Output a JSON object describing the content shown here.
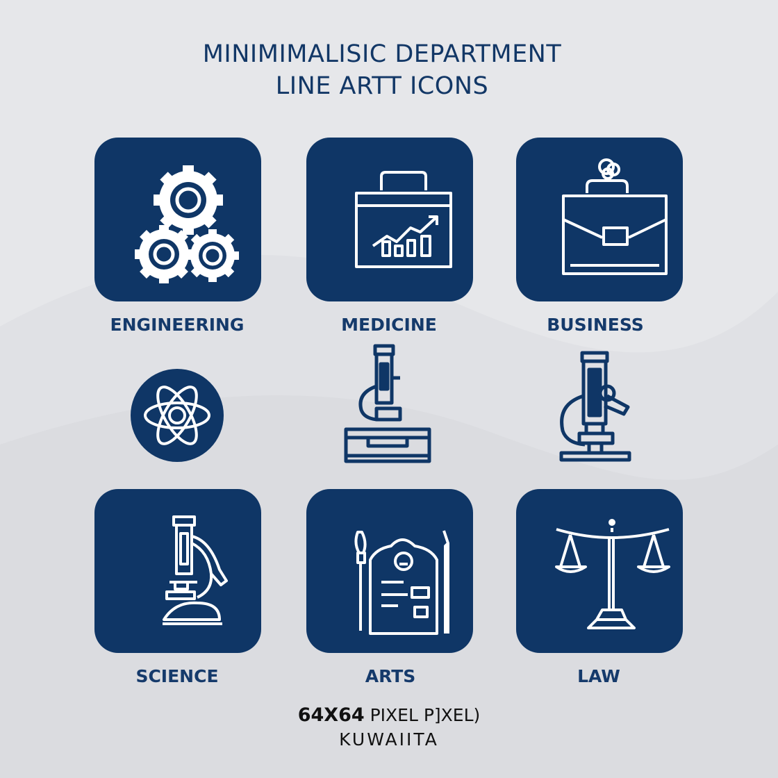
{
  "title": {
    "line1": "MINIMIMALISIC DEPARTMENT",
    "line2": "LINE ARTT ICONS"
  },
  "colors": {
    "tile": "#0f3666",
    "text": "#153a6b",
    "background": "#e6e7ea"
  },
  "icons": [
    {
      "label": "ENGINEERING",
      "icon": "gears-icon"
    },
    {
      "label": "MEDICINE",
      "icon": "briefcase-chart-icon"
    },
    {
      "label": "BUSINESS",
      "icon": "briefcase-icon"
    },
    {
      "label": "",
      "icon": "atom-icon"
    },
    {
      "label": "",
      "icon": "microscope-icon"
    },
    {
      "label": "",
      "icon": "microscope-icon"
    },
    {
      "label": "SCIENCE",
      "icon": "microscope-icon"
    },
    {
      "label": "ARTS",
      "icon": "brush-document-icon"
    },
    {
      "label": "LAW",
      "icon": "scales-icon"
    }
  ],
  "footer": {
    "size": "64X64",
    "line1_rest": "PIXEL P]XEL)",
    "line2": "KUWAIITA"
  }
}
